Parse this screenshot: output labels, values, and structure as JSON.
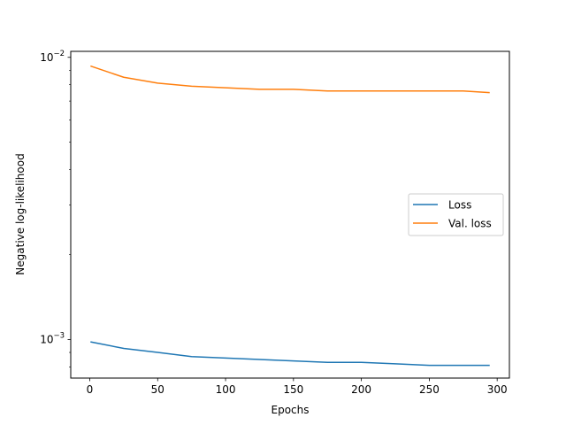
{
  "chart_data": {
    "type": "line",
    "xlabel": "Epochs",
    "ylabel": "Negative log-likelihood",
    "yscale": "log",
    "xlim": [
      -14,
      309
    ],
    "ylim": [
      0.00073,
      0.0105
    ],
    "xticks": [
      0,
      50,
      100,
      150,
      200,
      250,
      300
    ],
    "xtick_labels": [
      "0",
      "50",
      "100",
      "150",
      "200",
      "250",
      "300"
    ],
    "yticks": [
      0.001,
      0.01
    ],
    "ytick_base_labels": [
      "10",
      "10"
    ],
    "ytick_exponent_labels": [
      "−3",
      "−2"
    ],
    "grid": false,
    "legend": {
      "placement": "center-right",
      "entries": [
        "Loss",
        "Val. loss"
      ]
    },
    "x": [
      1,
      25,
      50,
      75,
      100,
      125,
      150,
      175,
      200,
      225,
      250,
      275,
      294
    ],
    "series": [
      {
        "name": "Loss",
        "color": "#1f77b4",
        "values": [
          0.00098,
          0.00093,
          0.0009,
          0.00087,
          0.00086,
          0.00085,
          0.00084,
          0.00083,
          0.00083,
          0.00082,
          0.00081,
          0.00081,
          0.00081
        ]
      },
      {
        "name": "Val. loss",
        "color": "#ff7f0e",
        "values": [
          0.0093,
          0.0085,
          0.0081,
          0.0079,
          0.0078,
          0.0077,
          0.0077,
          0.0076,
          0.0076,
          0.0076,
          0.0076,
          0.0076,
          0.0075
        ]
      }
    ]
  }
}
